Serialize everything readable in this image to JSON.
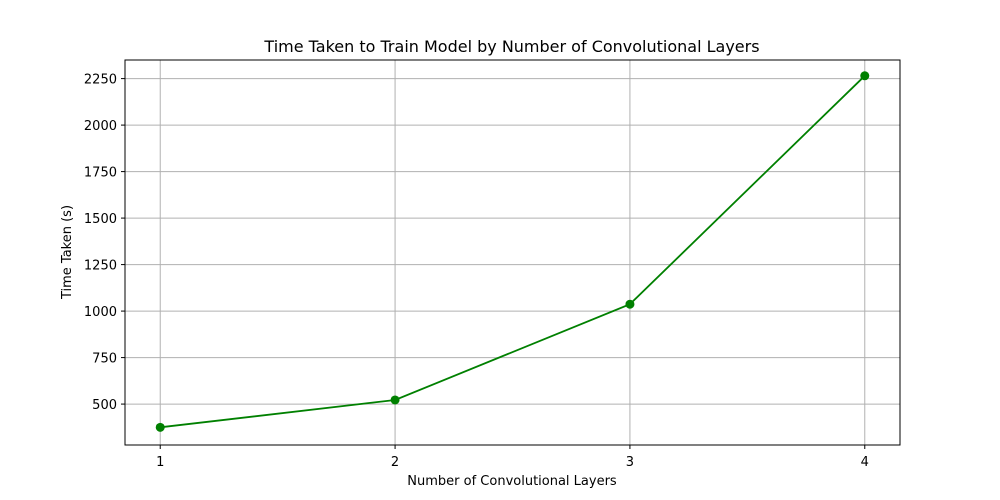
{
  "chart_data": {
    "type": "line",
    "title": "Time Taken to Train Model by Number of Convolutional Layers",
    "xlabel": "Number of Convolutional Layers",
    "ylabel": "Time Taken (s)",
    "x": [
      1,
      2,
      3,
      4
    ],
    "series": [
      {
        "values": [
          375,
          522,
          1037,
          2265
        ],
        "color": "#008000",
        "marker": "circle"
      }
    ],
    "xticks": [
      1,
      2,
      3,
      4
    ],
    "yticks": [
      500,
      750,
      1000,
      1250,
      1500,
      1750,
      2000,
      2250
    ],
    "xlim": [
      0.85,
      4.15
    ],
    "ylim": [
      280,
      2350
    ],
    "grid": true
  }
}
